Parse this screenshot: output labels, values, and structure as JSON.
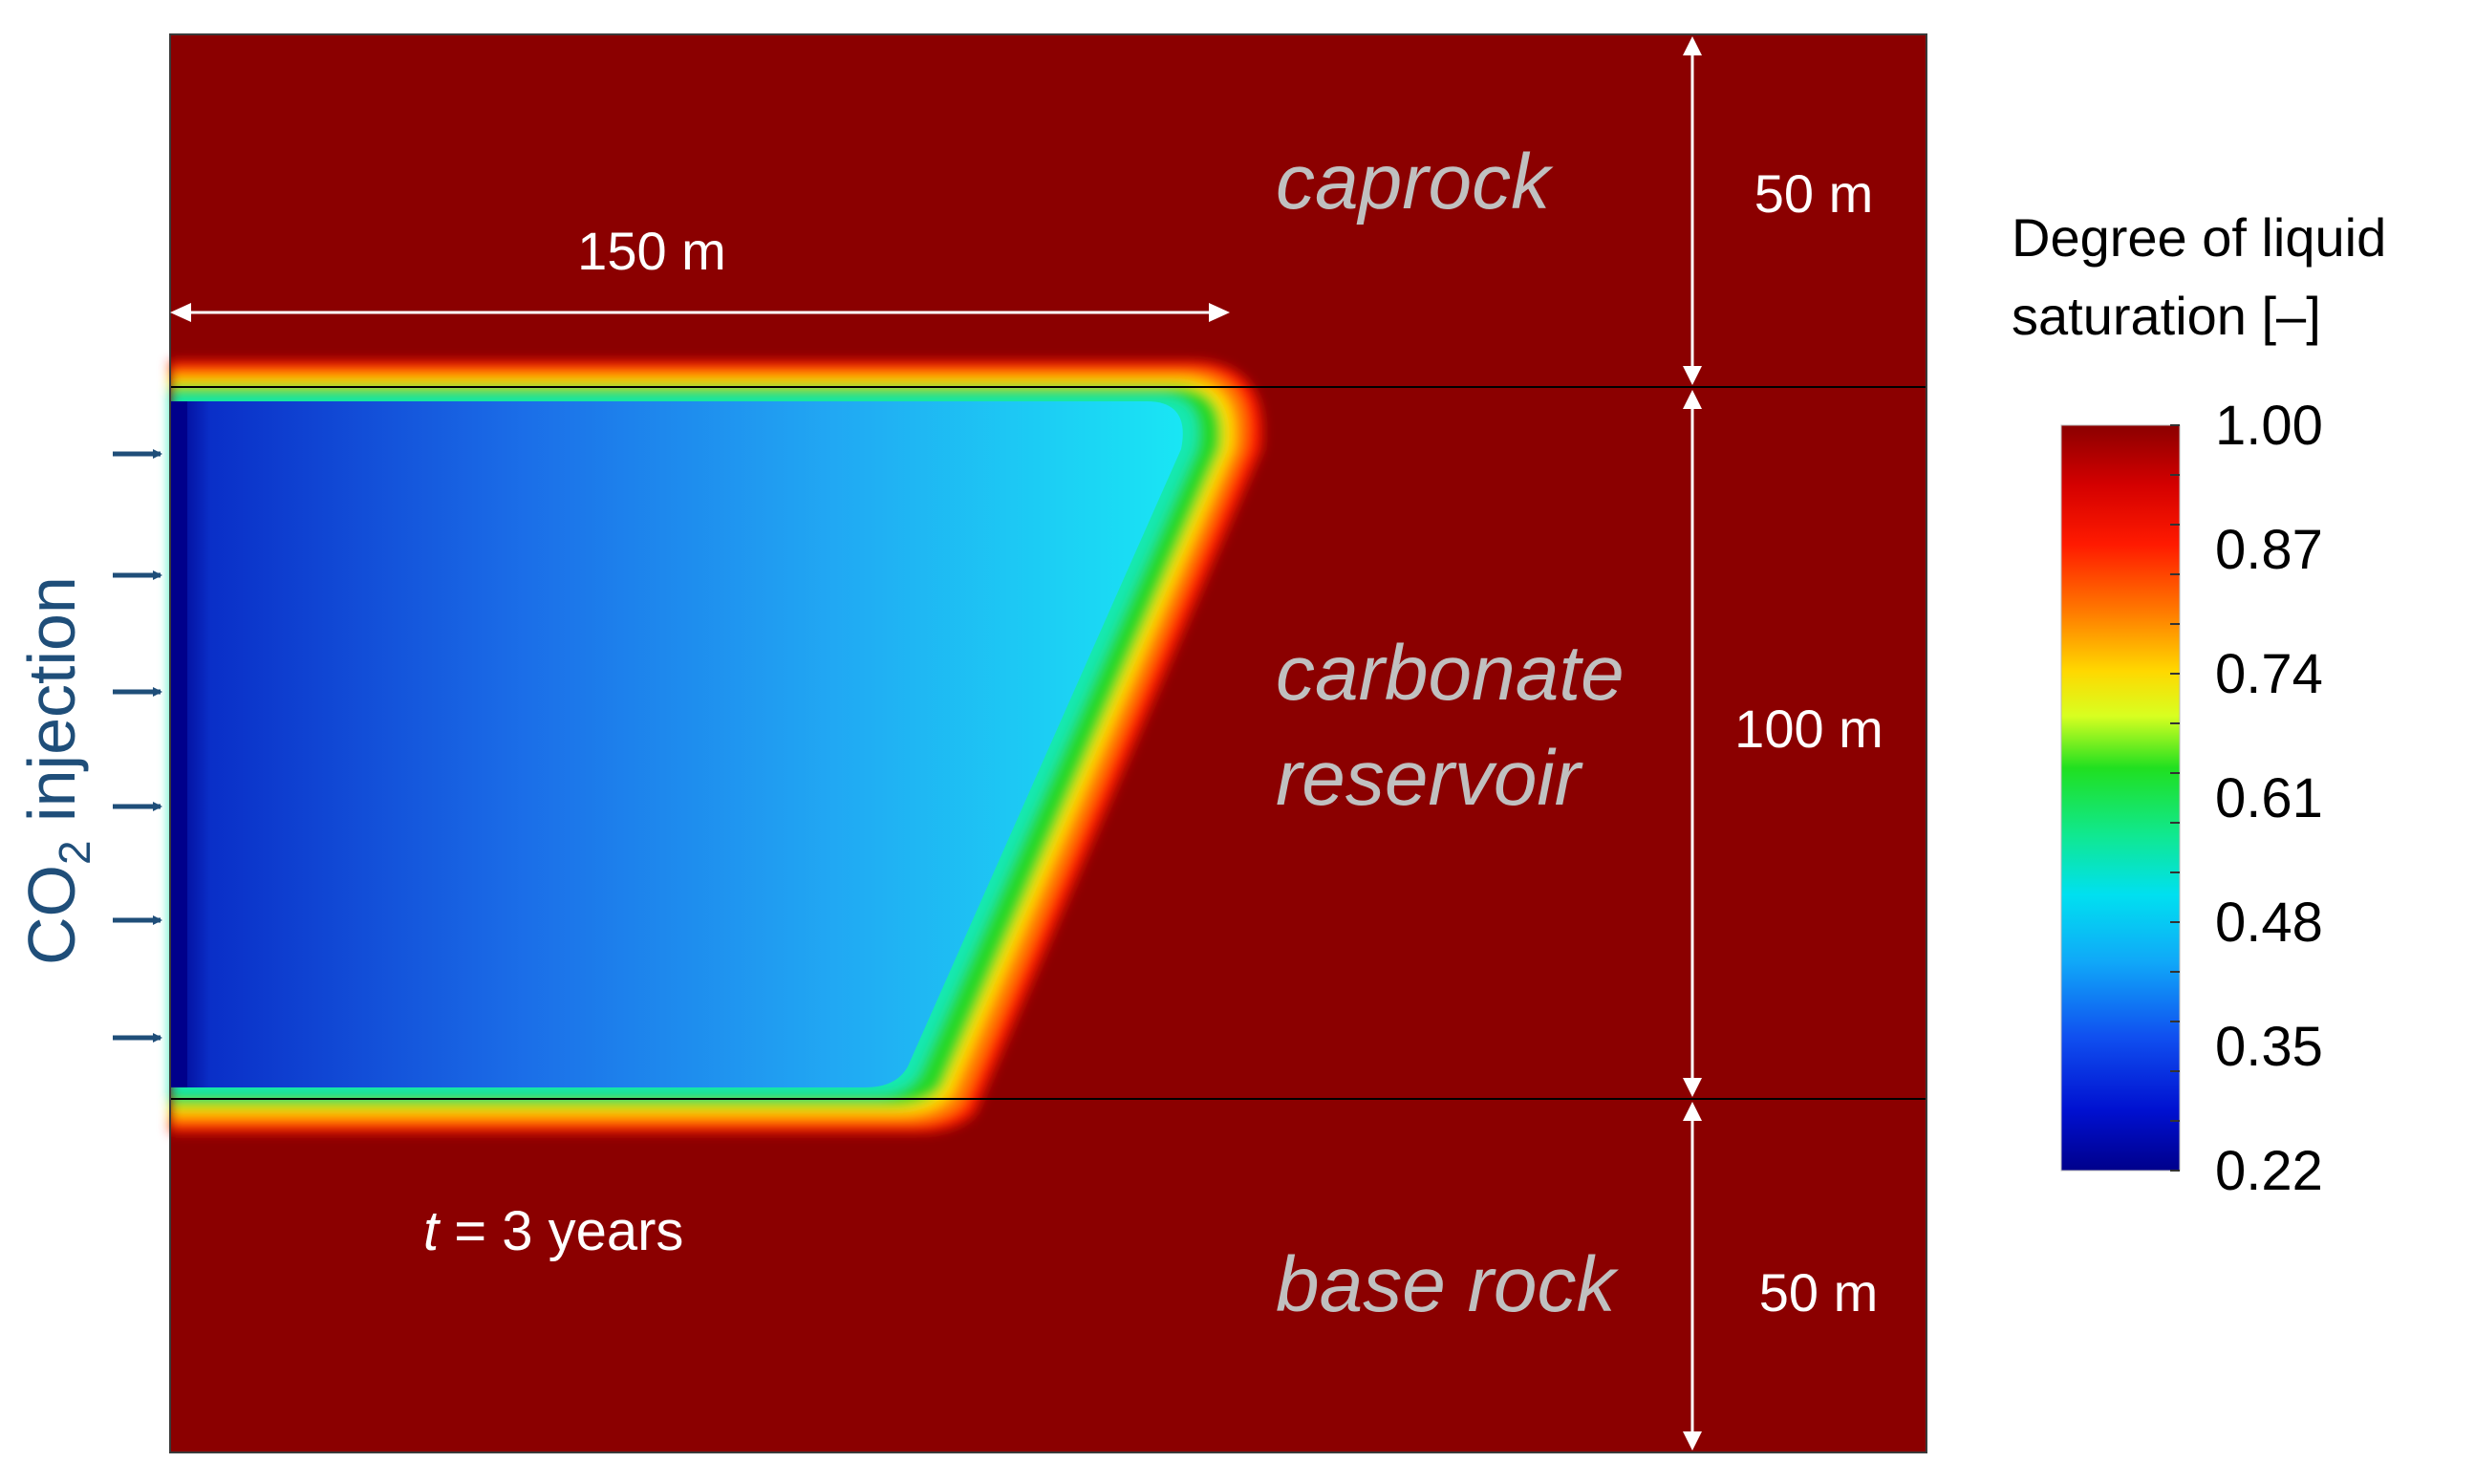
{
  "layers": {
    "caprock": "caprock",
    "reservoir_line1": "carbonate",
    "reservoir_line2": "reservoir",
    "base": "base rock"
  },
  "dimensions": {
    "horizontal_extent": "150 m",
    "caprock_thickness": "50 m",
    "reservoir_thickness": "100 m",
    "base_thickness": "50 m"
  },
  "time_label": {
    "var": "t",
    "rest": " = 3 years"
  },
  "injection": {
    "prefix": "CO",
    "subscript": "2",
    "suffix": " injection",
    "arrow_count": 6
  },
  "colorbar": {
    "title_line1": "Degree of liquid",
    "title_line2": "saturation [–]",
    "ticks": [
      "1.00",
      "0.87",
      "0.74",
      "0.61",
      "0.48",
      "0.35",
      "0.22"
    ],
    "min": 0.22,
    "max": 1.0
  },
  "colors": {
    "background": "#8b0000",
    "label_gray": "#c0c0c0",
    "arrow_navy": "#1f4e79"
  }
}
